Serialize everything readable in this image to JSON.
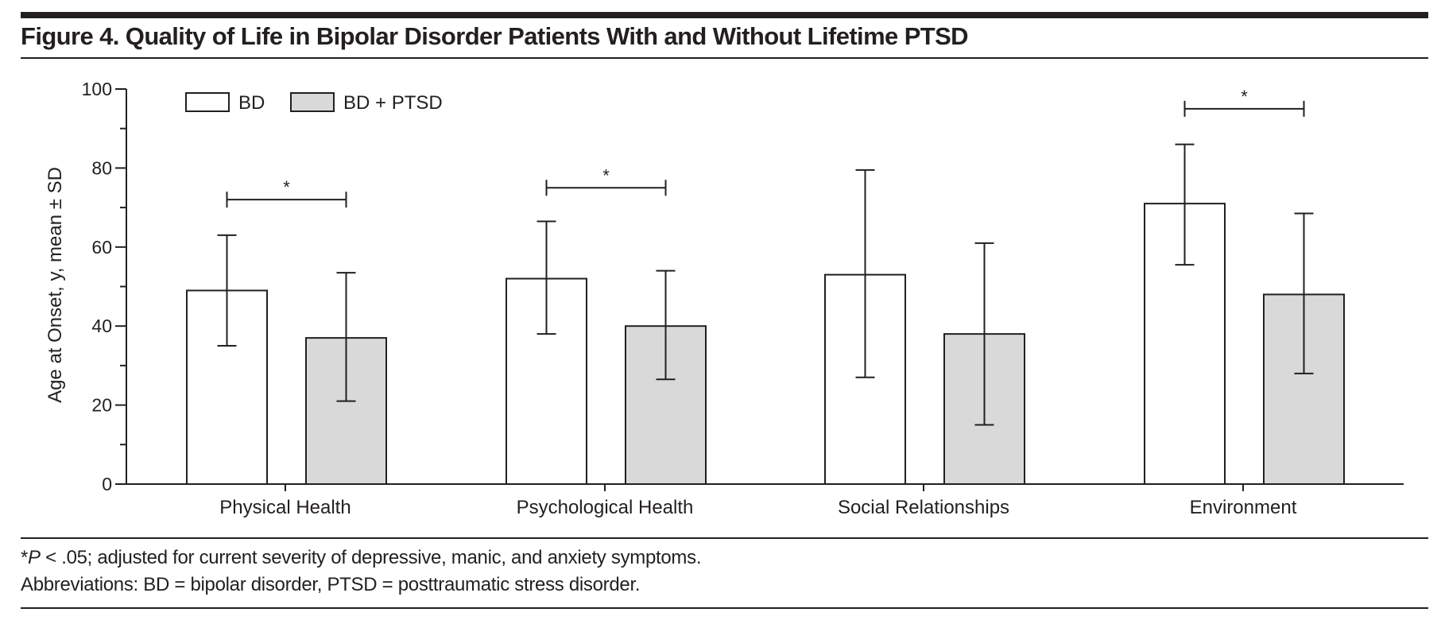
{
  "figure": {
    "title": "Figure 4. Quality of Life in Bipolar Disorder Patients With and Without Lifetime PTSD",
    "footnote_star": "*",
    "footnote_p": "P",
    "footnote_rest": " < .05; adjusted for current severity of depressive, manic, and anxiety symptoms.",
    "abbreviations": "Abbreviations: BD = bipolar disorder, PTSD = posttraumatic stress disorder."
  },
  "chart_data": {
    "type": "bar",
    "title": "Quality of Life in Bipolar Disorder Patients With and Without Lifetime PTSD",
    "xlabel": "",
    "ylabel": "Age at Onset, y, mean ± SD",
    "ylim": [
      0,
      100
    ],
    "yticks": [
      0,
      20,
      40,
      60,
      80,
      100
    ],
    "minor_ytick_step": 10,
    "grid": false,
    "legend_position": "top-left",
    "categories": [
      "Physical Health",
      "Psychological Health",
      "Social Relationships",
      "Environment"
    ],
    "series": [
      {
        "name": "BD",
        "fill": "#ffffff",
        "values": [
          49,
          52,
          53,
          71
        ],
        "sd_upper": [
          63,
          66.5,
          79.5,
          86
        ],
        "sd_lower": [
          35,
          38,
          27,
          55.5
        ]
      },
      {
        "name": "BD + PTSD",
        "fill": "#d9d9d9",
        "values": [
          37,
          40,
          38,
          48
        ],
        "sd_upper": [
          53.5,
          54,
          61,
          68.5
        ],
        "sd_lower": [
          21,
          26.5,
          15,
          28
        ]
      }
    ],
    "significance": [
      {
        "category": "Physical Health",
        "label": "*",
        "y": 72
      },
      {
        "category": "Psychological Health",
        "label": "*",
        "y": 75
      },
      {
        "category": "Environment",
        "label": "*",
        "y": 95
      }
    ]
  }
}
